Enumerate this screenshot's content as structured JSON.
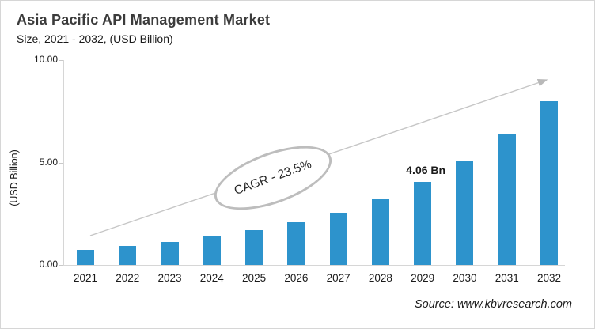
{
  "header": {
    "title": "Asia Pacific API Management Market",
    "subtitle": "Size, 2021 - 2032, (USD Billion)"
  },
  "chart_data": {
    "type": "bar",
    "title": "Asia Pacific API Management Market Size, 2021 - 2032, (USD Billion)",
    "categories": [
      "2021",
      "2022",
      "2023",
      "2024",
      "2025",
      "2026",
      "2027",
      "2028",
      "2029",
      "2030",
      "2031",
      "2032"
    ],
    "values": [
      0.75,
      0.92,
      1.13,
      1.38,
      1.68,
      2.08,
      2.56,
      3.23,
      4.06,
      5.06,
      6.38,
      8.0
    ],
    "xlabel": "",
    "ylabel": "(USD Billion)",
    "ylim": [
      0,
      10
    ],
    "yticks": [
      {
        "value": 0,
        "label": "0.00"
      },
      {
        "value": 5,
        "label": "5.00"
      },
      {
        "value": 10,
        "label": "10.00"
      }
    ],
    "grid": false,
    "legend": "none",
    "bar_color": "#2d93cc",
    "point_label": {
      "category": "2029",
      "text": "4.06 Bn"
    }
  },
  "annotations": {
    "cagr_label": "CAGR - 23.5%",
    "trend_arrow_color": "#c6c6c6"
  },
  "footer": {
    "source": "Source: www.kbvresearch.com"
  }
}
